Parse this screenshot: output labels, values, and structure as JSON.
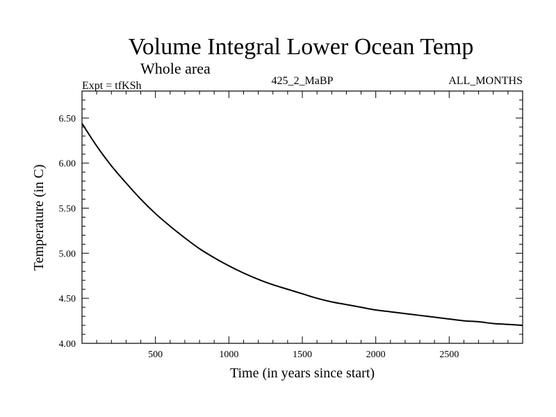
{
  "chart_data": {
    "type": "line",
    "title": "Volume Integral Lower Ocean Temp",
    "subtitle": "Whole area",
    "experiment": "Expt = tfKSh",
    "period": "425_2_MaBP",
    "months": "ALL_MONTHS",
    "xlabel": "Time (in years since start)",
    "ylabel": "Temperature (in C)",
    "xlim": [
      0,
      3000
    ],
    "ylim": [
      4.0,
      6.8
    ],
    "x_ticks": [
      500,
      1000,
      1500,
      2000,
      2500
    ],
    "x_tick_labels": [
      "500",
      "1000",
      "1500",
      "2000",
      "2500"
    ],
    "y_ticks": [
      4.0,
      4.5,
      5.0,
      5.5,
      6.0,
      6.5
    ],
    "y_tick_labels": [
      "4.00",
      "4.50",
      "5.00",
      "5.50",
      "6.00",
      "6.50"
    ],
    "series": [
      {
        "name": "Lower Ocean Temp",
        "color": "#000000",
        "x": [
          0,
          100,
          200,
          300,
          400,
          500,
          600,
          700,
          800,
          900,
          1000,
          1100,
          1200,
          1300,
          1400,
          1500,
          1600,
          1700,
          1800,
          1900,
          2000,
          2100,
          2200,
          2300,
          2400,
          2500,
          2600,
          2700,
          2800,
          2900,
          3000
        ],
        "values": [
          6.44,
          6.19,
          5.97,
          5.78,
          5.6,
          5.44,
          5.3,
          5.17,
          5.05,
          4.95,
          4.86,
          4.78,
          4.71,
          4.65,
          4.6,
          4.55,
          4.5,
          4.46,
          4.43,
          4.4,
          4.37,
          4.35,
          4.33,
          4.31,
          4.29,
          4.27,
          4.25,
          4.24,
          4.22,
          4.21,
          4.2
        ]
      }
    ]
  }
}
